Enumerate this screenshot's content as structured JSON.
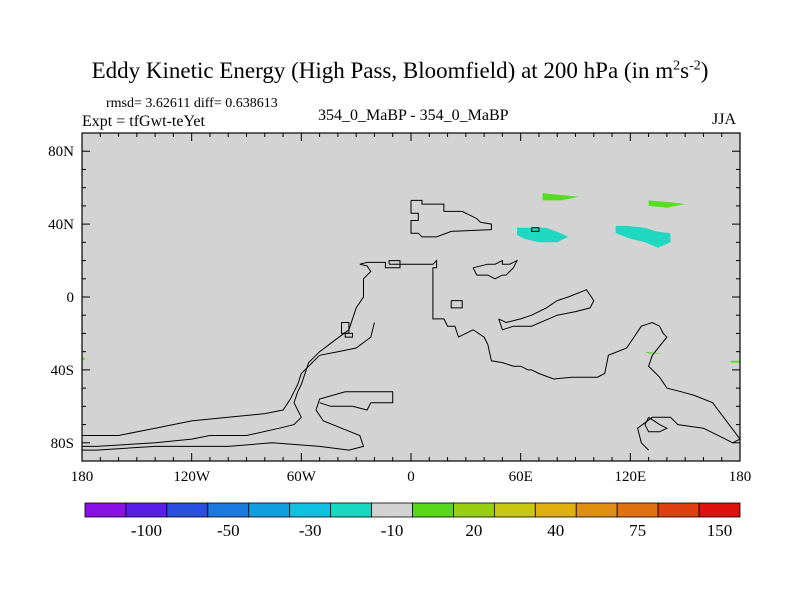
{
  "title": {
    "main": "Eddy Kinetic Energy (High Pass, Bloomfield) at 200 hPa (in m",
    "sup1": "2",
    "mid": "s",
    "sup2": "-2",
    "close": ")"
  },
  "stats": "rmsd= 3.62611 diff= 0.638613",
  "expt": "Expt = tfGwt-teYet",
  "center_label": "354_0_MaBP - 354_0_MaBP",
  "season": "JJA",
  "colors": {
    "background": "#d3d3d3",
    "coast": "#000000",
    "teal": "#20d8c0",
    "green": "#55dd22"
  },
  "chart_data": {
    "type": "heatmap",
    "map_projection": "cylindrical-equidistant",
    "lon_range": [
      -180,
      180
    ],
    "lat_range": [
      -90,
      90
    ],
    "x_ticks": [
      {
        "lon": -180,
        "label": "180"
      },
      {
        "lon": -120,
        "label": "120W"
      },
      {
        "lon": -60,
        "label": "60W"
      },
      {
        "lon": 0,
        "label": "0"
      },
      {
        "lon": 60,
        "label": "60E"
      },
      {
        "lon": 120,
        "label": "120E"
      },
      {
        "lon": 180,
        "label": "180"
      }
    ],
    "y_ticks": [
      {
        "lat": 80,
        "label": "80N"
      },
      {
        "lat": 40,
        "label": "40N"
      },
      {
        "lat": 0,
        "label": "0"
      },
      {
        "lat": -40,
        "label": "40S"
      },
      {
        "lat": -80,
        "label": "80S"
      }
    ],
    "colorbar": {
      "colors": [
        "#8a10e8",
        "#5a1ee8",
        "#2a4ee0",
        "#1a7ae0",
        "#109ee0",
        "#10c0e0",
        "#18d8c0",
        "#d3d3d3",
        "#58d818",
        "#98d010",
        "#c8c810",
        "#e0b010",
        "#e09010",
        "#e07010",
        "#e04010",
        "#e01010"
      ],
      "labels": [
        {
          "boundary": 2,
          "text": "-100"
        },
        {
          "boundary": 4,
          "text": "-50"
        },
        {
          "boundary": 6,
          "text": "-30"
        },
        {
          "boundary": 8,
          "text": "-10"
        },
        {
          "boundary": 10,
          "text": "20"
        },
        {
          "boundary": 12,
          "text": "40"
        },
        {
          "boundary": 14,
          "text": "75"
        },
        {
          "boundary": 16,
          "text": "150"
        }
      ]
    },
    "anomalies": [
      {
        "name": "central-asia-anomaly",
        "color": "teal",
        "shape": [
          [
            58,
            38
          ],
          [
            64,
            38
          ],
          [
            74,
            38
          ],
          [
            82,
            35
          ],
          [
            86,
            33
          ],
          [
            80,
            30
          ],
          [
            70,
            30
          ],
          [
            62,
            32
          ],
          [
            58,
            34
          ]
        ]
      },
      {
        "name": "east-asia-anomaly",
        "color": "teal",
        "shape": [
          [
            112,
            39
          ],
          [
            118,
            39
          ],
          [
            128,
            38
          ],
          [
            134,
            36
          ],
          [
            142,
            35
          ],
          [
            142,
            30
          ],
          [
            135,
            27
          ],
          [
            128,
            30
          ],
          [
            120,
            32
          ],
          [
            112,
            35
          ]
        ]
      },
      {
        "name": "north-asia-anomaly-west",
        "color": "green",
        "shape": [
          [
            72,
            57
          ],
          [
            82,
            56
          ],
          [
            92,
            55
          ],
          [
            82,
            53
          ],
          [
            72,
            53
          ]
        ]
      },
      {
        "name": "north-asia-anomaly-east",
        "color": "green",
        "shape": [
          [
            130,
            53
          ],
          [
            142,
            52
          ],
          [
            150,
            51
          ],
          [
            140,
            49
          ],
          [
            130,
            50
          ]
        ]
      },
      {
        "name": "indian-ocean-anomaly",
        "color": "green",
        "shape": [
          [
            128,
            -30
          ],
          [
            138,
            -31
          ],
          [
            140,
            -31
          ],
          [
            130,
            -31
          ]
        ]
      },
      {
        "name": "east-edge-anomaly",
        "color": "green",
        "shape": [
          [
            175,
            -35
          ],
          [
            180,
            -35
          ],
          [
            180,
            -36
          ],
          [
            175,
            -36
          ]
        ]
      },
      {
        "name": "west-edge-anomaly",
        "color": "green",
        "shape": [
          [
            -180,
            -33
          ],
          [
            -178,
            -34
          ],
          [
            -180,
            -35
          ]
        ]
      }
    ],
    "coastlines": [
      {
        "name": "coast-north-land",
        "points": [
          [
            0,
            53
          ],
          [
            6,
            53
          ],
          [
            6,
            51
          ],
          [
            18,
            51
          ],
          [
            18,
            47
          ],
          [
            28,
            47
          ],
          [
            36,
            43
          ],
          [
            38,
            41
          ],
          [
            44,
            40
          ],
          [
            44,
            37
          ],
          [
            22,
            36
          ],
          [
            14,
            33
          ],
          [
            6,
            33
          ],
          [
            4,
            35
          ],
          [
            0,
            35
          ],
          [
            0,
            42
          ],
          [
            4,
            42
          ],
          [
            4,
            46
          ],
          [
            0,
            46
          ],
          [
            0,
            53
          ]
        ]
      },
      {
        "name": "coast-main-continent",
        "points": [
          [
            -28,
            18
          ],
          [
            -24,
            19
          ],
          [
            -14,
            19
          ],
          [
            -14,
            16
          ],
          [
            -6,
            16
          ],
          [
            -6,
            18
          ],
          [
            12,
            18
          ],
          [
            14,
            20
          ],
          [
            14,
            16
          ],
          [
            12,
            16
          ],
          [
            12,
            -12
          ],
          [
            18,
            -12
          ],
          [
            20,
            -16
          ],
          [
            24,
            -16
          ],
          [
            26,
            -22
          ],
          [
            30,
            -20
          ],
          [
            34,
            -18
          ],
          [
            40,
            -22
          ],
          [
            42,
            -26
          ],
          [
            44,
            -35
          ],
          [
            50,
            -36
          ],
          [
            56,
            -38
          ],
          [
            60,
            -38
          ],
          [
            64,
            -40
          ],
          [
            66,
            -40
          ],
          [
            70,
            -42
          ],
          [
            78,
            -45
          ],
          [
            88,
            -44
          ],
          [
            102,
            -44
          ],
          [
            106,
            -42
          ],
          [
            108,
            -32
          ],
          [
            118,
            -28
          ],
          [
            126,
            -16
          ],
          [
            132,
            -14
          ],
          [
            136,
            -16
          ],
          [
            138,
            -20
          ],
          [
            140,
            -22
          ],
          [
            132,
            -32
          ],
          [
            130,
            -38
          ],
          [
            136,
            -44
          ],
          [
            140,
            -50
          ],
          [
            148,
            -52
          ],
          [
            155,
            -54
          ],
          [
            165,
            -58
          ],
          [
            180,
            -78
          ],
          [
            176,
            -80
          ],
          [
            172,
            -78
          ],
          [
            160,
            -72
          ],
          [
            146,
            -70
          ],
          [
            142,
            -66
          ],
          [
            132,
            -66
          ],
          [
            124,
            -72
          ],
          [
            126,
            -80
          ],
          [
            130,
            -84
          ]
        ]
      },
      {
        "name": "coast-southern-tongue",
        "points": [
          [
            -20,
            -14
          ],
          [
            -22,
            -22
          ],
          [
            -30,
            -28
          ],
          [
            -40,
            -30
          ],
          [
            -50,
            -32
          ],
          [
            -60,
            -42
          ],
          [
            -62,
            -48
          ],
          [
            -64,
            -52
          ],
          [
            -66,
            -56
          ],
          [
            -70,
            -62
          ],
          [
            -80,
            -64
          ],
          [
            -100,
            -66
          ],
          [
            -120,
            -68
          ],
          [
            -140,
            -72
          ],
          [
            -160,
            -76
          ],
          [
            -180,
            -76
          ]
        ]
      },
      {
        "name": "coast-south-inner",
        "points": [
          [
            -180,
            -82
          ],
          [
            -172,
            -82
          ],
          [
            -140,
            -80
          ],
          [
            -120,
            -78
          ],
          [
            -110,
            -76
          ],
          [
            -90,
            -76
          ],
          [
            -72,
            -72
          ],
          [
            -64,
            -70
          ],
          [
            -60,
            -66
          ],
          [
            -64,
            -58
          ],
          [
            -62,
            -52
          ],
          [
            -60,
            -48
          ],
          [
            -58,
            -42
          ],
          [
            -56,
            -36
          ],
          [
            -50,
            -30
          ],
          [
            -42,
            -24
          ],
          [
            -34,
            -18
          ],
          [
            -30,
            -6
          ],
          [
            -26,
            0
          ],
          [
            -26,
            10
          ],
          [
            -22,
            14
          ],
          [
            -24,
            17
          ],
          [
            -28,
            18
          ]
        ]
      },
      {
        "name": "coast-south-middle",
        "points": [
          [
            -50,
            -58
          ],
          [
            -44,
            -60
          ],
          [
            -32,
            -60
          ],
          [
            -24,
            -62
          ],
          [
            -22,
            -58
          ],
          [
            -10,
            -58
          ],
          [
            -10,
            -52
          ],
          [
            -36,
            -52
          ],
          [
            -50,
            -56
          ],
          [
            -52,
            -62
          ],
          [
            -48,
            -68
          ],
          [
            -38,
            -72
          ],
          [
            -28,
            -76
          ],
          [
            -26,
            -82
          ],
          [
            -34,
            -84
          ],
          [
            -50,
            -82
          ],
          [
            -76,
            -80
          ],
          [
            -100,
            -82
          ],
          [
            -140,
            -82
          ],
          [
            -172,
            -84
          ],
          [
            -180,
            -84
          ]
        ]
      },
      {
        "name": "coast-mid-ridge",
        "points": [
          [
            48,
            -12
          ],
          [
            52,
            -14
          ],
          [
            60,
            -12
          ],
          [
            66,
            -10
          ],
          [
            74,
            -6
          ],
          [
            80,
            -2
          ],
          [
            86,
            0
          ],
          [
            96,
            4
          ],
          [
            100,
            -2
          ],
          [
            98,
            -6
          ],
          [
            90,
            -8
          ],
          [
            80,
            -10
          ],
          [
            66,
            -16
          ],
          [
            56,
            -16
          ],
          [
            50,
            -18
          ],
          [
            48,
            -12
          ]
        ]
      },
      {
        "name": "coast-east-block",
        "points": [
          [
            34,
            16
          ],
          [
            42,
            18
          ],
          [
            46,
            18
          ],
          [
            50,
            20
          ],
          [
            50,
            18
          ],
          [
            54,
            18
          ],
          [
            58,
            20
          ],
          [
            56,
            16
          ],
          [
            52,
            12
          ],
          [
            50,
            12
          ],
          [
            46,
            10
          ],
          [
            42,
            12
          ],
          [
            36,
            12
          ],
          [
            34,
            16
          ]
        ]
      },
      {
        "name": "coast-island-a",
        "points": [
          [
            -38,
            -14
          ],
          [
            -34,
            -14
          ],
          [
            -34,
            -20
          ],
          [
            -38,
            -20
          ],
          [
            -38,
            -14
          ]
        ]
      },
      {
        "name": "coast-island-b",
        "points": [
          [
            -36,
            -20
          ],
          [
            -32,
            -20
          ],
          [
            -32,
            -22
          ],
          [
            -36,
            -22
          ],
          [
            -36,
            -20
          ]
        ]
      },
      {
        "name": "coast-island-c",
        "points": [
          [
            22,
            -2
          ],
          [
            28,
            -2
          ],
          [
            28,
            -6
          ],
          [
            22,
            -6
          ],
          [
            22,
            -2
          ]
        ]
      },
      {
        "name": "coast-island-d",
        "points": [
          [
            -12,
            18
          ],
          [
            -6,
            18
          ],
          [
            -6,
            20
          ],
          [
            -12,
            20
          ],
          [
            -12,
            18
          ]
        ]
      },
      {
        "name": "coast-island-e",
        "points": [
          [
            66,
            38
          ],
          [
            70,
            38
          ],
          [
            70,
            36
          ],
          [
            66,
            36
          ],
          [
            66,
            38
          ]
        ]
      },
      {
        "name": "coast-island-f",
        "points": [
          [
            130,
            -66
          ],
          [
            136,
            -70
          ],
          [
            140,
            -72
          ],
          [
            136,
            -74
          ],
          [
            130,
            -74
          ],
          [
            128,
            -70
          ],
          [
            130,
            -66
          ]
        ]
      },
      {
        "name": "coast-south-ice",
        "points": [
          [
            -145,
            -90
          ],
          [
            -120,
            -90
          ],
          [
            -80,
            -90
          ],
          [
            -40,
            -90
          ],
          [
            0,
            -90
          ],
          [
            20,
            -90
          ]
        ]
      }
    ]
  }
}
